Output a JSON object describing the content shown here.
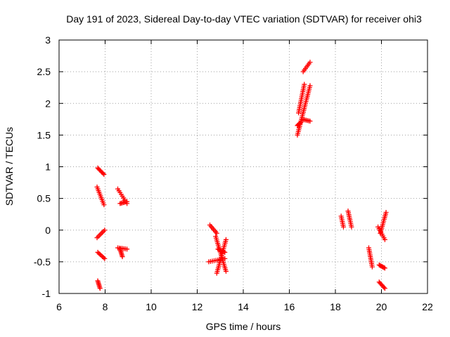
{
  "chart_data": {
    "type": "scatter",
    "title": "Day 191 of 2023, Sidereal Day-to-day VTEC variation (SDTVAR) for receiver ohi3",
    "xlabel": "GPS time / hours",
    "ylabel": "SDTVAR / TECUs",
    "xlim": [
      6,
      22
    ],
    "ylim": [
      -1,
      3
    ],
    "xticks": [
      "6",
      "8",
      "10",
      "12",
      "14",
      "16",
      "18",
      "20",
      "22"
    ],
    "yticks": [
      "-1",
      "-0.5",
      "0",
      "0.5",
      "1",
      "1.5",
      "2",
      "2.5",
      "3"
    ],
    "grid": true,
    "marker": "+",
    "color": "#ff0000",
    "segments": [
      {
        "x0": 7.68,
        "x1": 7.95,
        "y0": 0.98,
        "y1": 0.88
      },
      {
        "x0": 7.65,
        "x1": 7.95,
        "y0": 0.68,
        "y1": 0.4
      },
      {
        "x0": 7.65,
        "x1": 7.98,
        "y0": -0.12,
        "y1": 0.0
      },
      {
        "x0": 7.68,
        "x1": 7.98,
        "y0": -0.35,
        "y1": -0.45
      },
      {
        "x0": 7.68,
        "x1": 7.78,
        "y0": -0.8,
        "y1": -0.92
      },
      {
        "x0": 8.55,
        "x1": 8.95,
        "y0": 0.65,
        "y1": 0.42
      },
      {
        "x0": 8.65,
        "x1": 8.95,
        "y0": 0.42,
        "y1": 0.45
      },
      {
        "x0": 8.55,
        "x1": 8.95,
        "y0": -0.28,
        "y1": -0.3
      },
      {
        "x0": 8.65,
        "x1": 8.75,
        "y0": -0.3,
        "y1": -0.42
      },
      {
        "x0": 12.55,
        "x1": 12.85,
        "y0": 0.08,
        "y1": -0.05
      },
      {
        "x0": 12.5,
        "x1": 13.2,
        "y0": -0.5,
        "y1": -0.45
      },
      {
        "x0": 12.8,
        "x1": 13.25,
        "y0": -0.1,
        "y1": -0.65
      },
      {
        "x0": 12.85,
        "x1": 13.25,
        "y0": -0.68,
        "y1": -0.15
      },
      {
        "x0": 12.9,
        "x1": 13.2,
        "y0": -0.3,
        "y1": -0.35
      },
      {
        "x0": 16.35,
        "x1": 16.9,
        "y0": 1.5,
        "y1": 2.28
      },
      {
        "x0": 16.4,
        "x1": 16.65,
        "y0": 1.85,
        "y1": 2.3
      },
      {
        "x0": 16.6,
        "x1": 16.9,
        "y0": 2.5,
        "y1": 2.65
      },
      {
        "x0": 16.55,
        "x1": 16.9,
        "y0": 1.75,
        "y1": 1.72
      },
      {
        "x0": 16.35,
        "x1": 16.5,
        "y0": 1.65,
        "y1": 1.7
      },
      {
        "x0": 18.25,
        "x1": 18.35,
        "y0": 0.22,
        "y1": 0.05
      },
      {
        "x0": 18.55,
        "x1": 18.7,
        "y0": 0.3,
        "y1": 0.05
      },
      {
        "x0": 19.45,
        "x1": 19.6,
        "y0": -0.28,
        "y1": -0.58
      },
      {
        "x0": 19.85,
        "x1": 20.15,
        "y0": 0.05,
        "y1": -0.15
      },
      {
        "x0": 19.9,
        "x1": 20.15,
        "y0": -0.55,
        "y1": -0.6
      },
      {
        "x0": 19.9,
        "x1": 20.15,
        "y0": -0.82,
        "y1": -0.92
      },
      {
        "x0": 19.95,
        "x1": 20.2,
        "y0": -0.05,
        "y1": 0.28
      }
    ]
  }
}
